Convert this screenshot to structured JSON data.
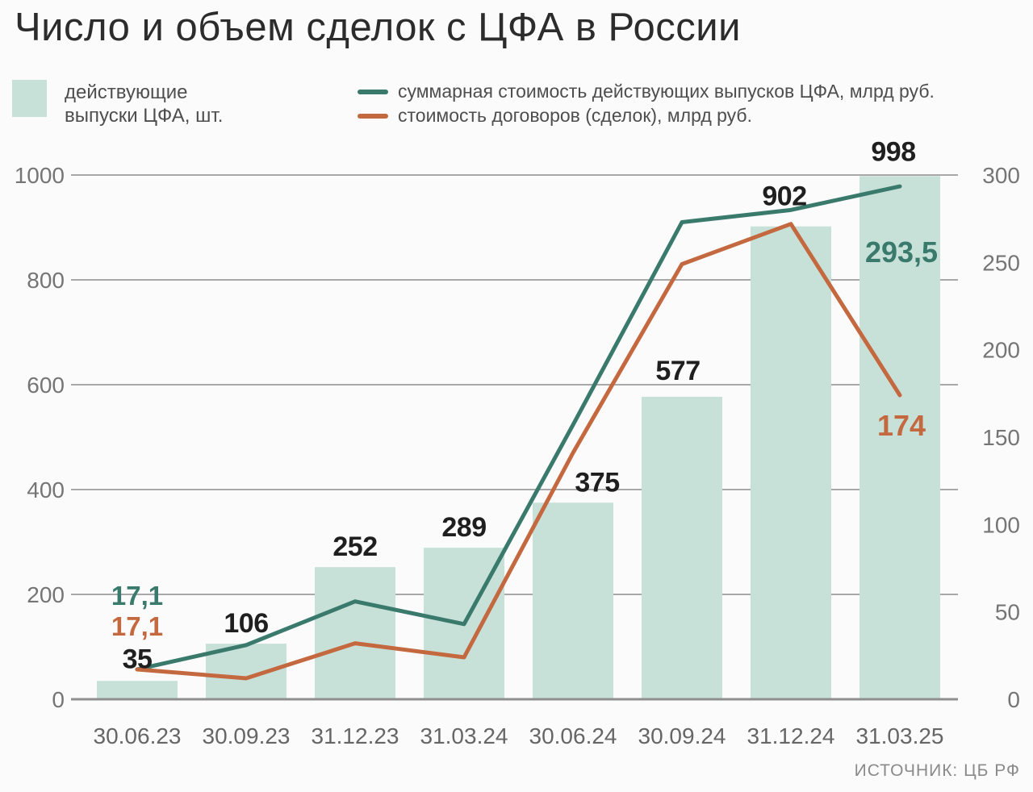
{
  "title": "Число и объем сделок с ЦФА в России",
  "legend": {
    "bars": {
      "line1": "действующие",
      "line2": "выпуски ЦФА, шт."
    },
    "line1": {
      "label": "суммарная стоимость действующих выпусков ЦФА, млрд руб."
    },
    "line2": {
      "label": "стоимость договоров (сделок), млрд руб."
    }
  },
  "source": "ИСТОЧНИК: ЦБ РФ",
  "chart_data": {
    "type": "bar",
    "subtype": "combo-bar-line",
    "categories": [
      "30.06.23",
      "30.09.23",
      "31.12.23",
      "31.03.24",
      "30.06.24",
      "30.09.24",
      "31.12.24",
      "31.03.25"
    ],
    "series": [
      {
        "name": "действующие выпуски ЦФА, шт.",
        "type": "bar",
        "axis": "left",
        "color": "#c8e1d8",
        "values": [
          35,
          106,
          252,
          289,
          375,
          577,
          902,
          998
        ],
        "data_labels": [
          "35",
          "106",
          "252",
          "289",
          "375",
          "577",
          "902",
          "998"
        ]
      },
      {
        "name": "суммарная стоимость действующих выпусков ЦФА, млрд руб.",
        "type": "line",
        "axis": "right",
        "color": "#3a7a6d",
        "values": [
          17.1,
          31,
          56,
          43,
          157,
          273,
          280,
          293.5
        ],
        "labeled_points": [
          {
            "index": 0,
            "text": "17,1"
          },
          {
            "index": 7,
            "text": "293,5"
          }
        ]
      },
      {
        "name": "стоимость договоров (сделок), млрд руб.",
        "type": "line",
        "axis": "right",
        "color": "#c4693f",
        "values": [
          17.1,
          12,
          32,
          24,
          141,
          249,
          272,
          174
        ],
        "labeled_points": [
          {
            "index": 0,
            "text": "17,1"
          },
          {
            "index": 7,
            "text": "174"
          }
        ]
      }
    ],
    "left_axis": {
      "range": [
        0,
        1000
      ],
      "ticks": [
        "0",
        "200",
        "400",
        "600",
        "800",
        "1000"
      ]
    },
    "right_axis": {
      "range": [
        0,
        300
      ],
      "ticks": [
        "0",
        "50",
        "100",
        "150",
        "200",
        "250",
        "300"
      ]
    },
    "grid": true,
    "legend_position": "top",
    "colors": {
      "grid": "#a8a8a8",
      "baseline": "#8f8f8f",
      "axis_text": "#757575",
      "category_text": "#666666",
      "bar_label_text": "#1f1f1f"
    }
  }
}
